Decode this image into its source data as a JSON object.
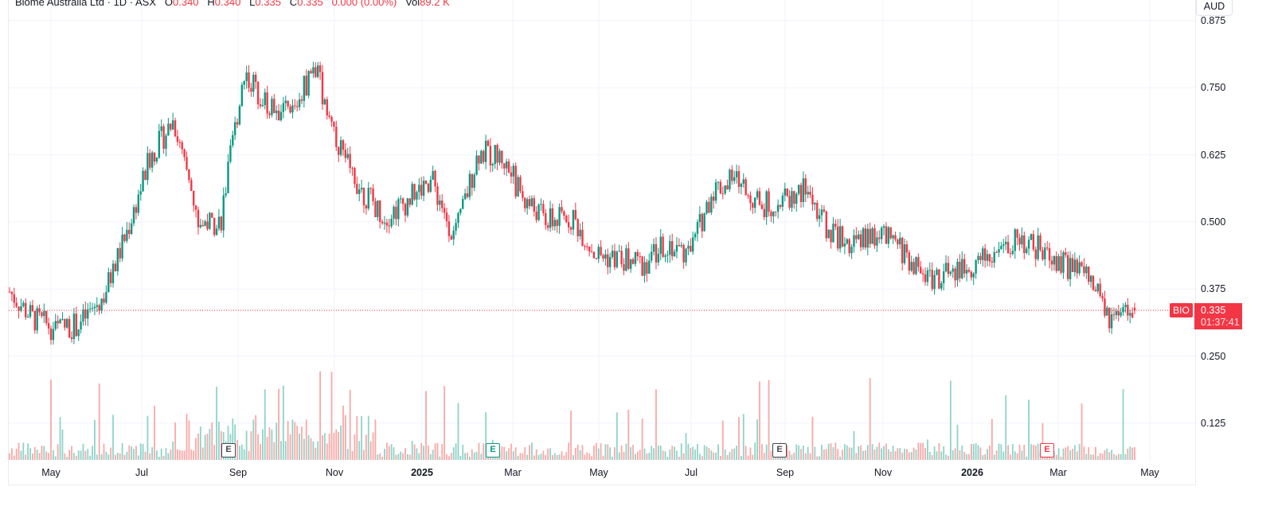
{
  "header": {
    "title": "Biome Australia Ltd · 1D · ASX",
    "ohlc": {
      "o_label": "O",
      "o": "0.340",
      "h_label": "H",
      "h": "0.340",
      "l_label": "L",
      "l": "0.335",
      "c_label": "C",
      "c": "0.335",
      "change": "0.000 (0.00%)",
      "vol_label": "Vol",
      "vol": "89.2 K"
    }
  },
  "currency": "AUD",
  "price_axis": [
    "0.875",
    "0.750",
    "0.625",
    "0.500",
    "0.375",
    "0.250",
    "0.125"
  ],
  "time_axis": [
    "May",
    "Jul",
    "Sep",
    "Nov",
    "2025",
    "Mar",
    "May",
    "Jul",
    "Sep",
    "Nov",
    "2026",
    "Mar",
    "May"
  ],
  "last_price": {
    "symbol": "BIO",
    "price": "0.335",
    "countdown": "01:37:41"
  },
  "earnings_markers": [
    {
      "label": "E",
      "status": "past"
    },
    {
      "label": "E",
      "status": "beat"
    },
    {
      "label": "E",
      "status": "past"
    },
    {
      "label": "E",
      "status": "miss"
    }
  ],
  "colors": {
    "up": "#089981",
    "down": "#f23645",
    "up_vol": "#8fd3c8",
    "down_vol": "#f7a9a7",
    "grid": "#f0f3fa"
  },
  "chart_data": {
    "type": "candlestick",
    "title": "Biome Australia Ltd · 1D · ASX",
    "ylabel": "AUD",
    "ylim": [
      0.06,
      0.875
    ],
    "grid": true,
    "x": [
      "2024-04",
      "2024-05",
      "2024-05",
      "2024-06",
      "2024-06",
      "2024-07",
      "2024-07",
      "2024-08",
      "2024-08",
      "2024-09",
      "2024-09",
      "2024-10",
      "2024-10",
      "2024-11",
      "2024-11",
      "2024-12",
      "2024-12",
      "2025-01",
      "2025-01",
      "2025-02",
      "2025-02",
      "2025-03",
      "2025-03",
      "2025-04",
      "2025-04",
      "2025-05",
      "2025-05",
      "2025-06",
      "2025-06",
      "2025-07",
      "2025-07",
      "2025-08",
      "2025-08",
      "2025-09",
      "2025-09",
      "2025-10",
      "2025-10",
      "2025-11",
      "2025-11",
      "2025-12",
      "2025-12",
      "2026-01",
      "2026-01",
      "2026-02",
      "2026-02",
      "2026-03",
      "2026-03",
      "2026-04",
      "2026-04"
    ],
    "close": [
      0.37,
      0.32,
      0.3,
      0.31,
      0.36,
      0.48,
      0.62,
      0.69,
      0.5,
      0.5,
      0.78,
      0.72,
      0.7,
      0.79,
      0.65,
      0.56,
      0.51,
      0.54,
      0.58,
      0.47,
      0.63,
      0.62,
      0.54,
      0.5,
      0.51,
      0.44,
      0.43,
      0.42,
      0.46,
      0.44,
      0.56,
      0.58,
      0.53,
      0.54,
      0.56,
      0.48,
      0.46,
      0.48,
      0.45,
      0.4,
      0.4,
      0.42,
      0.44,
      0.47,
      0.45,
      0.42,
      0.4,
      0.31,
      0.335
    ],
    "last": {
      "open": 0.34,
      "high": 0.34,
      "low": 0.335,
      "close": 0.335,
      "volume": "89.2K"
    },
    "series": [
      {
        "name": "Volume",
        "type": "bar"
      }
    ]
  }
}
